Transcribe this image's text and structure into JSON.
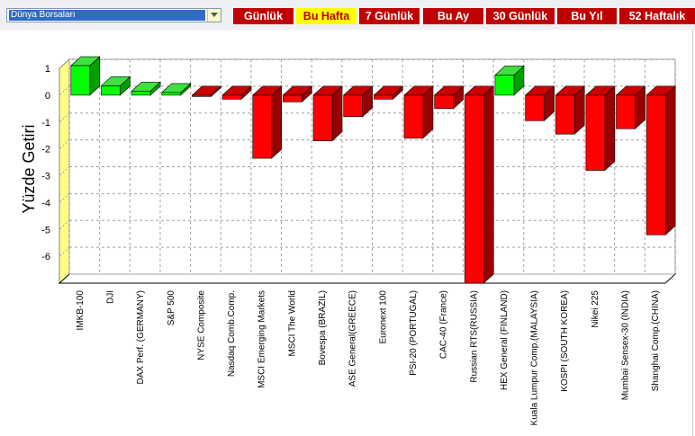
{
  "toolbar": {
    "dropdown_value": "Dünya Borsaları",
    "tabs": [
      {
        "label": "Günlük",
        "active": false
      },
      {
        "label": "Bu Hafta",
        "active": true
      },
      {
        "label": "7 Günlük",
        "active": false
      },
      {
        "label": "Bu Ay",
        "active": false
      },
      {
        "label": "30 Günlük",
        "active": false
      },
      {
        "label": "Bu Yıl",
        "active": false
      },
      {
        "label": "52 Haftalık",
        "active": false
      }
    ]
  },
  "colors": {
    "positive": "#00ff00",
    "negative": "#ff0000",
    "active_tab_bg": "#ffff00",
    "tab_bg": "#c00000"
  },
  "chart_data": {
    "type": "bar",
    "ylabel": "Yüzde Getiri",
    "xlabel": "",
    "ylim": [
      -7,
      1
    ],
    "yticks": [
      1,
      0,
      -1,
      -2,
      -3,
      -4,
      -5,
      -6
    ],
    "grid": true,
    "categories": [
      "IMKB-100",
      "DJI",
      "DAX Perf. (GERMANY)",
      "S&P 500",
      "NYSE Composite",
      "Nasdaq Comb.Comp.",
      "MSCI Emerging Markets",
      "MSCI The World",
      "Bovespa (BRAZIL)",
      "ASE General(GREECE)",
      "Euronext 100",
      "PSI-20 (PORTUGAL)",
      "CAC-40 (France)",
      "Russian RTS(RUSSIA)",
      "HEX General (FINLAND)",
      "Kuala Lumpur Comp.(MALAYSIA)",
      "KOSPI (SOUTH KOREA)",
      "Nikei 225",
      "Mumbai Sensex-30 (INDIA)",
      "Shanghai Comp.(CHINA)"
    ],
    "values": [
      1.1,
      0.35,
      0.15,
      0.1,
      -0.05,
      -0.15,
      -2.35,
      -0.25,
      -1.7,
      -0.8,
      -0.15,
      -1.6,
      -0.5,
      -7.0,
      0.75,
      -0.95,
      -1.45,
      -2.8,
      -1.25,
      -5.2
    ]
  }
}
